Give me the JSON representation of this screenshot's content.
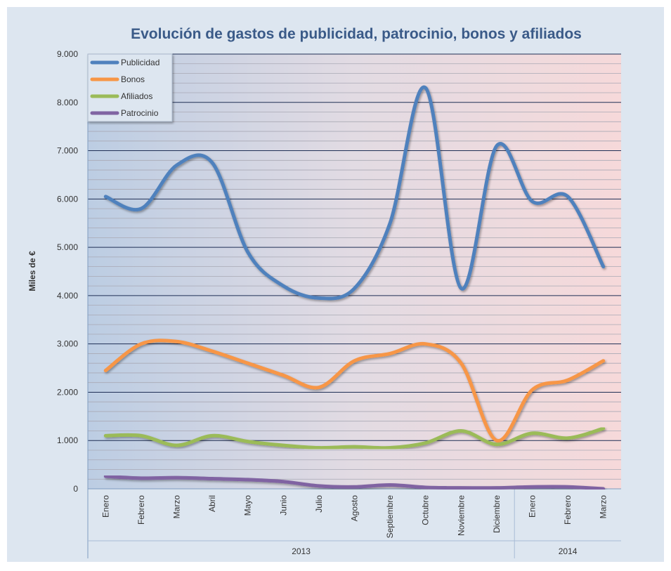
{
  "chart_data": {
    "type": "line",
    "title": "Evolución de gastos de publicidad, patrocinio, bonos y afiliados",
    "y_label": "Miles de €",
    "categories": [
      "Enero",
      "Febrero",
      "Marzo",
      "Abril",
      "Mayo",
      "Junio",
      "Julio",
      "Agosto",
      "Septiembre",
      "Octubre",
      "Noviembre",
      "Diciembre",
      "Enero",
      "Febrero",
      "Marzo"
    ],
    "x_groups": [
      {
        "label": "2013",
        "count": 12
      },
      {
        "label": "2014",
        "count": 3
      }
    ],
    "series": [
      {
        "name": "Publicidad",
        "color": "#4f81bd",
        "values": [
          6050,
          5800,
          6700,
          6750,
          4900,
          4200,
          3950,
          4150,
          5500,
          8300,
          4150,
          7100,
          5950,
          6050,
          4600
        ]
      },
      {
        "name": "Bonos",
        "color": "#f79646",
        "values": [
          2450,
          3000,
          3050,
          2850,
          2600,
          2350,
          2100,
          2650,
          2800,
          3000,
          2600,
          1000,
          2050,
          2250,
          2650
        ]
      },
      {
        "name": "Afiliados",
        "color": "#9bbb59",
        "values": [
          1100,
          1100,
          900,
          1100,
          980,
          900,
          850,
          870,
          850,
          950,
          1200,
          920,
          1150,
          1050,
          1250
        ]
      },
      {
        "name": "Patrocinio",
        "color": "#8064a2",
        "values": [
          260,
          220,
          230,
          210,
          190,
          150,
          60,
          40,
          80,
          30,
          20,
          20,
          40,
          40,
          0
        ]
      }
    ],
    "ylim": [
      0,
      9000
    ],
    "yticks": [
      0,
      {
        "value": 1000,
        "label": "1.000"
      },
      {
        "value": 2000,
        "label": "2.000"
      },
      {
        "value": 3000,
        "label": "3.000"
      },
      {
        "value": 4000,
        "label": "4.000"
      },
      {
        "value": 5000,
        "label": "5.000"
      },
      {
        "value": 6000,
        "label": "6.000"
      },
      {
        "value": 7000,
        "label": "7.000"
      },
      {
        "value": 8000,
        "label": "8.000"
      },
      {
        "value": 9000,
        "label": "9.000"
      }
    ],
    "grid": true,
    "minor_grid": true,
    "smooth": true,
    "legend": "top-left"
  }
}
